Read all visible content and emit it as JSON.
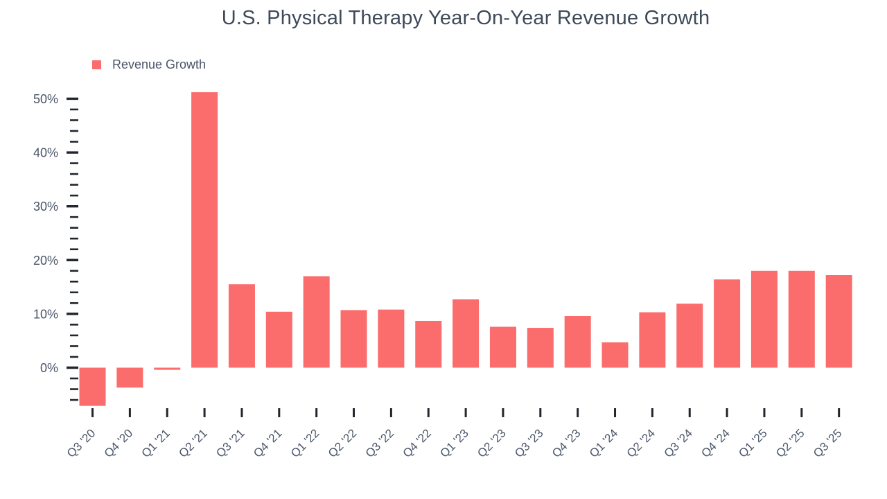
{
  "header": {
    "title": "U.S. Physical Therapy Year-On-Year Revenue Growth"
  },
  "legend": {
    "label": "Revenue Growth",
    "swatch_color": "#fb6c6c"
  },
  "colors": {
    "bar": "#fb6c6c",
    "title_text": "#3e4a59",
    "axis_text": "#4a5568",
    "tick_mark": "#20262e",
    "background": "#ffffff"
  },
  "chart_data": {
    "type": "bar",
    "title": "U.S. Physical Therapy Year-On-Year Revenue Growth",
    "legend_entries": [
      "Revenue Growth"
    ],
    "legend_position": "top-left",
    "unit": "%",
    "xlabel": "",
    "ylabel": "",
    "grid": false,
    "ylim": [
      -8,
      52
    ],
    "y_major_tick_step": 10,
    "y_minor_tick_step": 2,
    "y_major_tick_labels": [
      "0%",
      "10%",
      "20%",
      "30%",
      "40%",
      "50%"
    ],
    "categories": [
      "Q3 '20",
      "Q4 '20",
      "Q1 '21",
      "Q2 '21",
      "Q3 '21",
      "Q4 '21",
      "Q1 '22",
      "Q2 '22",
      "Q3 '22",
      "Q4 '22",
      "Q1 '23",
      "Q2 '23",
      "Q3 '23",
      "Q4 '23",
      "Q1 '24",
      "Q2 '24",
      "Q3 '24",
      "Q4 '24",
      "Q1 '25",
      "Q2 '25",
      "Q3 '25"
    ],
    "values": [
      -7.1,
      -3.7,
      -0.4,
      51.2,
      15.5,
      10.4,
      17.0,
      10.7,
      10.8,
      8.7,
      12.7,
      7.6,
      7.4,
      9.6,
      4.7,
      10.3,
      11.9,
      16.4,
      18.0,
      18.0,
      17.2
    ]
  }
}
